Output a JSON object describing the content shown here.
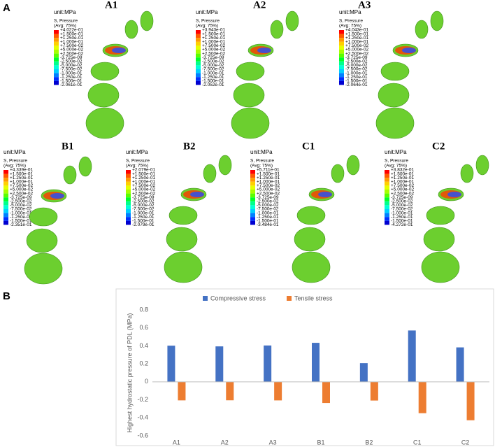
{
  "panel_a": {
    "label": "A",
    "panels": [
      {
        "label": "A1",
        "unit": "unit:MPa",
        "variable": "S, Pressure",
        "averaging": "(Avg: 75%)",
        "legend_labels": [
          "+4.022e-01",
          "+1.500e-01",
          "+1.250e-01",
          "+1.000e-01",
          "+7.500e-02",
          "+5.000e-02",
          "+2.500e-02",
          "-3.725e-09",
          "-2.500e-02",
          "-5.000e-02",
          "-7.500e-02",
          "-1.000e-01",
          "-1.250e-01",
          "-1.500e-01",
          "-2.061e-01"
        ]
      },
      {
        "label": "A2",
        "unit": "unit:MPa",
        "variable": "S, Pressure",
        "averaging": "(Avg: 75%)",
        "legend_labels": [
          "+3.943e-01",
          "+1.500e-01",
          "+1.250e-01",
          "+1.000e-01",
          "+7.500e-02",
          "+5.000e-02",
          "+2.500e-02",
          "-3.725e-09",
          "-2.500e-02",
          "-5.000e-02",
          "-7.500e-02",
          "-1.000e-01",
          "-1.250e-01",
          "-1.500e-01",
          "-2.052e-01"
        ]
      },
      {
        "label": "A3",
        "unit": "unit:MPa",
        "variable": "S, Pressure",
        "averaging": "(Avg: 75%)",
        "legend_labels": [
          "+4.043e-01",
          "+1.500e-01",
          "+1.250e-01",
          "+1.000e-01",
          "+7.500e-02",
          "+5.000e-02",
          "+2.500e-02",
          "-3.725e-09",
          "-2.500e-02",
          "-5.000e-02",
          "-7.500e-02",
          "-1.000e-01",
          "-1.250e-01",
          "-1.500e-01",
          "-2.064e-01"
        ]
      },
      {
        "label": "B1",
        "unit": "unit:MPa",
        "variable": "S, Pressure",
        "averaging": "(Avg: 75%)",
        "legend_labels": [
          "+4.339e-01",
          "+1.500e-01",
          "+1.250e-01",
          "+1.000e-01",
          "+7.500e-02",
          "+5.000e-02",
          "+2.500e-02",
          "-3.725e-09",
          "-2.500e-02",
          "-5.000e-02",
          "-7.500e-02",
          "-1.000e-01",
          "-1.250e-01",
          "-1.500e-01",
          "-2.351e-01"
        ]
      },
      {
        "label": "B2",
        "unit": "unit:MPa",
        "variable": "S, Pressure",
        "averaging": "(Avg: 75%)",
        "legend_labels": [
          "+2.079e-01",
          "+1.500e-01",
          "+1.250e-01",
          "+1.000e-01",
          "+7.500e-02",
          "+5.000e-02",
          "+2.500e-02",
          "-3.725e-09",
          "-2.500e-02",
          "-5.000e-02",
          "-7.500e-02",
          "-1.000e-01",
          "-1.250e-01",
          "-1.500e-01",
          "-2.079e-01"
        ]
      },
      {
        "label": "C1",
        "unit": "unit:MPa",
        "variable": "S, Pressure",
        "averaging": "(Avg: 75%)",
        "legend_labels": [
          "+5.711e-01",
          "+1.500e-01",
          "+1.250e-01",
          "+1.000e-01",
          "+7.500e-02",
          "+5.000e-02",
          "+2.500e-02",
          "-3.725e-09",
          "-2.500e-02",
          "-5.000e-02",
          "-7.500e-02",
          "-1.000e-01",
          "-1.250e-01",
          "-1.500e-01",
          "-3.484e-01"
        ]
      },
      {
        "label": "C2",
        "unit": "unit:MPa",
        "variable": "S, Pressure",
        "averaging": "(Avg: 75%)",
        "legend_labels": [
          "+3.832e-01",
          "+1.500e-01",
          "+1.250e-01",
          "+1.000e-01",
          "+7.500e-02",
          "+5.000e-02",
          "+2.500e-02",
          "-3.725e-09",
          "-2.500e-02",
          "-5.000e-02",
          "-7.500e-02",
          "-1.000e-01",
          "-1.250e-01",
          "-1.500e-01",
          "-4.272e-01"
        ]
      }
    ]
  },
  "chart_data": {
    "type": "bar",
    "panel_label": "B",
    "y_label": "Highest hydrostatic pressure  of PDL (MPa)",
    "categories": [
      "A1",
      "A2",
      "A3",
      "B1",
      "B2",
      "C1",
      "C2"
    ],
    "series": [
      {
        "name": "Compressive stress",
        "color": "#4472c4",
        "values": [
          0.4022,
          0.3943,
          0.4043,
          0.4339,
          0.2079,
          0.5711,
          0.3832
        ]
      },
      {
        "name": "Tensile stress",
        "color": "#ed7d31",
        "values": [
          -0.2061,
          -0.2052,
          -0.2064,
          -0.2351,
          -0.2079,
          -0.3484,
          -0.4272
        ]
      }
    ],
    "ylim": [
      -0.6,
      0.8
    ],
    "yticks": [
      0.8,
      0.6,
      0.4,
      0.2,
      0,
      -0.2,
      -0.4,
      -0.6
    ],
    "legend": "top"
  }
}
